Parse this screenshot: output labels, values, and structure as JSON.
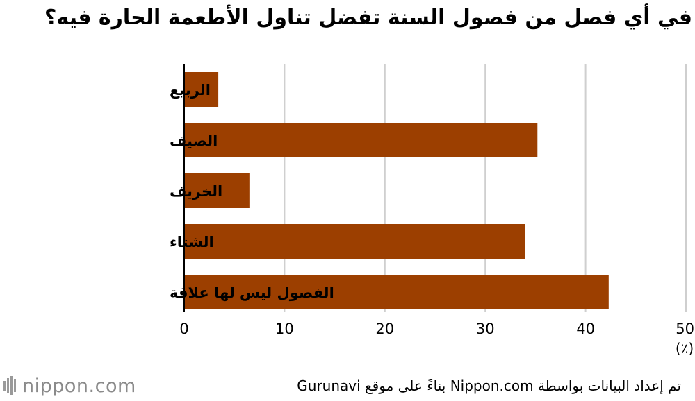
{
  "title": "في أي فصل من فصول السنة تفضل تناول الأطعمة الحارة فيه؟",
  "source": "تم إعداد البيانات بواسطة Nippon.com بناءً على موقع Gurunavi",
  "logo": {
    "text": "nippon.com"
  },
  "chart_data": {
    "type": "bar",
    "orientation": "horizontal",
    "categories": [
      "الربيع",
      "الصيف",
      "الخريف",
      "الشتاء",
      "الفصول ليس لها علاقة"
    ],
    "values": [
      3.4,
      35.2,
      6.5,
      34.0,
      42.3
    ],
    "xlim": [
      0,
      50
    ],
    "xticks": [
      0,
      10,
      20,
      30,
      40,
      50
    ],
    "unit_label": "(٪)",
    "bar_color": "#9c3f00",
    "grid": true
  }
}
